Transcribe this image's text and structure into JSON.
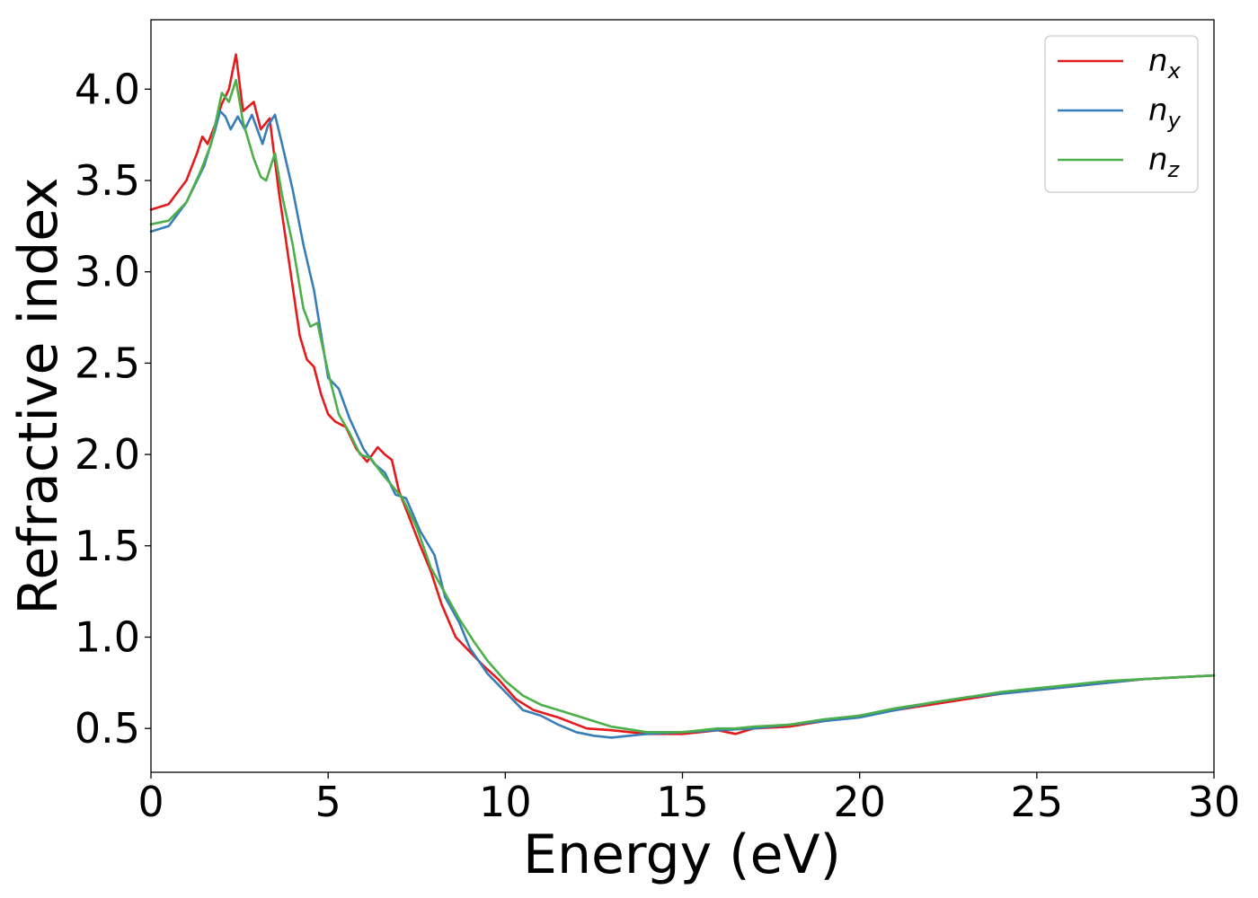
{
  "chart_data": {
    "type": "line",
    "title": "",
    "xlabel": "Energy (eV)",
    "ylabel": "Refractive index",
    "xlim": [
      0,
      30
    ],
    "ylim": [
      0.26,
      4.38
    ],
    "xticks": [
      0,
      5,
      10,
      15,
      20,
      25,
      30
    ],
    "xtick_labels": [
      "0",
      "5",
      "10",
      "15",
      "20",
      "25",
      "30"
    ],
    "yticks": [
      0.5,
      1.0,
      1.5,
      2.0,
      2.5,
      3.0,
      3.5,
      4.0
    ],
    "ytick_labels": [
      "0.5",
      "1.0",
      "1.5",
      "2.0",
      "2.5",
      "3.0",
      "3.5",
      "4.0"
    ],
    "grid": false,
    "legend_position": "top-right",
    "series": [
      {
        "name": "n_x",
        "label_base": "n",
        "label_sub": "x",
        "color": "#e41a1c",
        "x": [
          0,
          0.5,
          1.0,
          1.3,
          1.45,
          1.6,
          1.8,
          2.0,
          2.2,
          2.4,
          2.6,
          2.9,
          3.1,
          3.35,
          3.6,
          3.9,
          4.2,
          4.4,
          4.6,
          4.8,
          5.0,
          5.2,
          5.5,
          5.8,
          6.1,
          6.4,
          6.6,
          6.8,
          7.0,
          7.3,
          7.6,
          7.9,
          8.2,
          8.6,
          9.0,
          9.4,
          9.8,
          10.3,
          10.8,
          11.5,
          12.3,
          13.0,
          14.0,
          15.0,
          15.5,
          16.0,
          16.5,
          17.0,
          18.0,
          19.0,
          20.0,
          21.0,
          22.0,
          23.0,
          24.0,
          25.0,
          26.0,
          27.0,
          28.0,
          29.0,
          30.0
        ],
        "values": [
          3.34,
          3.37,
          3.5,
          3.65,
          3.74,
          3.7,
          3.8,
          3.92,
          4.0,
          4.19,
          3.88,
          3.93,
          3.78,
          3.84,
          3.45,
          3.05,
          2.65,
          2.52,
          2.48,
          2.33,
          2.22,
          2.18,
          2.15,
          2.03,
          1.96,
          2.04,
          2.0,
          1.97,
          1.8,
          1.65,
          1.5,
          1.36,
          1.18,
          1.0,
          0.92,
          0.84,
          0.77,
          0.66,
          0.6,
          0.56,
          0.5,
          0.49,
          0.47,
          0.47,
          0.48,
          0.49,
          0.47,
          0.5,
          0.51,
          0.54,
          0.57,
          0.6,
          0.63,
          0.66,
          0.69,
          0.71,
          0.73,
          0.75,
          0.77,
          0.78,
          0.79
        ]
      },
      {
        "name": "n_y",
        "label_base": "n",
        "label_sub": "y",
        "color": "#377eb8",
        "x": [
          0,
          0.5,
          1.0,
          1.5,
          1.8,
          1.95,
          2.1,
          2.25,
          2.45,
          2.65,
          2.85,
          3.0,
          3.15,
          3.3,
          3.5,
          3.7,
          4.0,
          4.3,
          4.6,
          5.0,
          5.3,
          5.6,
          6.0,
          6.3,
          6.6,
          6.9,
          7.2,
          7.6,
          8.0,
          8.3,
          8.7,
          9.0,
          9.5,
          10.0,
          10.5,
          11.0,
          11.5,
          12.0,
          12.5,
          13.0,
          13.5,
          14.0,
          15.0,
          16.0,
          17.0,
          18.0,
          19.0,
          20.0,
          21.0,
          22.0,
          23.0,
          24.0,
          25.0,
          26.0,
          27.0,
          28.0,
          29.0,
          30.0
        ],
        "values": [
          3.22,
          3.25,
          3.38,
          3.58,
          3.77,
          3.88,
          3.85,
          3.78,
          3.85,
          3.78,
          3.86,
          3.78,
          3.7,
          3.8,
          3.86,
          3.7,
          3.45,
          3.15,
          2.9,
          2.42,
          2.36,
          2.2,
          2.03,
          1.95,
          1.9,
          1.78,
          1.76,
          1.58,
          1.45,
          1.22,
          1.08,
          0.94,
          0.8,
          0.7,
          0.6,
          0.57,
          0.52,
          0.48,
          0.46,
          0.45,
          0.46,
          0.47,
          0.48,
          0.49,
          0.5,
          0.52,
          0.54,
          0.56,
          0.6,
          0.64,
          0.67,
          0.69,
          0.71,
          0.73,
          0.75,
          0.77,
          0.78,
          0.79
        ]
      },
      {
        "name": "n_z",
        "label_base": "n",
        "label_sub": "z",
        "color": "#4daf4a",
        "x": [
          0,
          0.5,
          1.0,
          1.4,
          1.7,
          2.0,
          2.2,
          2.4,
          2.6,
          2.9,
          3.1,
          3.25,
          3.5,
          3.7,
          4.0,
          4.3,
          4.5,
          4.7,
          5.0,
          5.3,
          5.6,
          5.9,
          6.2,
          6.5,
          6.8,
          7.1,
          7.5,
          7.9,
          8.3,
          8.7,
          9.1,
          9.5,
          10.0,
          10.5,
          11.0,
          11.5,
          12.0,
          13.0,
          14.0,
          15.0,
          16.0,
          16.5,
          17.0,
          18.0,
          19.0,
          20.0,
          21.0,
          22.0,
          23.0,
          24.0,
          25.0,
          26.0,
          27.0,
          28.0,
          29.0,
          30.0
        ],
        "values": [
          3.26,
          3.28,
          3.38,
          3.55,
          3.7,
          3.98,
          3.93,
          4.05,
          3.82,
          3.62,
          3.52,
          3.5,
          3.65,
          3.42,
          3.15,
          2.8,
          2.7,
          2.72,
          2.45,
          2.22,
          2.12,
          2.0,
          1.98,
          1.9,
          1.83,
          1.76,
          1.6,
          1.38,
          1.24,
          1.1,
          0.98,
          0.87,
          0.76,
          0.68,
          0.63,
          0.6,
          0.57,
          0.51,
          0.48,
          0.48,
          0.5,
          0.5,
          0.51,
          0.52,
          0.55,
          0.57,
          0.61,
          0.64,
          0.67,
          0.7,
          0.72,
          0.74,
          0.76,
          0.77,
          0.78,
          0.79
        ]
      }
    ]
  }
}
